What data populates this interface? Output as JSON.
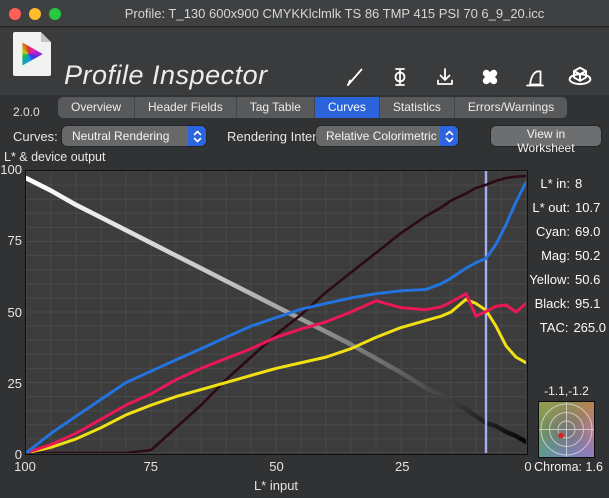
{
  "window": {
    "title": "Profile: T_130 600x900 CMYKKlclmlk TS 86 TMP 415 PSI 70 6_9_20.icc"
  },
  "header": {
    "app_title": "Profile Inspector",
    "version": "2.0.0",
    "toolbar_icons": [
      "pencil",
      "text-cursor",
      "download",
      "bandaid",
      "tone-curve",
      "gamut-cube"
    ]
  },
  "tabs": {
    "items": [
      "Overview",
      "Header Fields",
      "Tag Table",
      "Curves",
      "Statistics",
      "Errors/Warnings"
    ],
    "active": "Curves"
  },
  "controls": {
    "curves_label": "Curves:",
    "curves_value": "Neutral Rendering",
    "intent_label": "Rendering Intent:",
    "intent_value": "Relative Colorimetric",
    "worksheet_button": "View in Worksheet"
  },
  "chart_data": {
    "type": "line",
    "title": "L* & device output",
    "xlabel": "L* input",
    "x_axis": {
      "range": [
        0,
        100
      ],
      "reversed": true,
      "ticks": [
        100,
        75,
        50,
        25,
        0
      ]
    },
    "y_axis": {
      "range": [
        0,
        100
      ],
      "ticks": [
        100,
        75,
        50,
        25,
        0
      ]
    },
    "grid": {
      "on": true,
      "spacing": 5
    },
    "x": [
      100,
      95,
      90,
      85,
      80,
      75,
      70,
      65,
      60,
      55,
      50,
      45,
      40,
      35,
      30,
      25,
      20,
      17,
      15,
      12,
      10,
      8,
      6,
      4,
      2,
      0
    ],
    "series": [
      {
        "name": "L* out",
        "color": "gradient-white-to-black",
        "values": [
          97.5,
          93,
          88,
          83.5,
          79,
          74.5,
          70,
          65.5,
          61,
          56.5,
          52,
          47.5,
          43,
          38.5,
          33.5,
          28.5,
          23,
          20.5,
          18.5,
          15.5,
          13,
          10.7,
          9.5,
          7.5,
          6,
          4
        ]
      },
      {
        "name": "Black",
        "color": "#2d0a13",
        "values": [
          0,
          0,
          0,
          0,
          0,
          1,
          9,
          17,
          26,
          34,
          42,
          49,
          57,
          64,
          71,
          78,
          84,
          87,
          89.5,
          92,
          94,
          95.1,
          96.5,
          97.5,
          98,
          98.2
        ]
      },
      {
        "name": "Yellow",
        "color": "#f2e112",
        "values": [
          0,
          2,
          5,
          9,
          13.5,
          17,
          20,
          22.5,
          25,
          27.5,
          30,
          32,
          34,
          37,
          41,
          44.5,
          47,
          48.5,
          50,
          54.5,
          53,
          50.6,
          45,
          38,
          34,
          32
        ]
      },
      {
        "name": "Magenta",
        "color": "#ea1857",
        "values": [
          0,
          3,
          7,
          12,
          17,
          21,
          26,
          30,
          33.5,
          37,
          41,
          44,
          46.5,
          50,
          54,
          51.5,
          50.8,
          51.8,
          53.5,
          56.5,
          48.5,
          50.2,
          52,
          52.5,
          50,
          53
        ]
      },
      {
        "name": "Cyan",
        "color": "#2373e0",
        "values": [
          0,
          7,
          13,
          19,
          25,
          29,
          33,
          37,
          41,
          45,
          48,
          51,
          53,
          55,
          56.5,
          57.5,
          58,
          60,
          62,
          65.5,
          67.5,
          69,
          74,
          81,
          89,
          96
        ]
      }
    ],
    "cursor": {
      "x": 8,
      "color": "#a9adf5"
    }
  },
  "readouts": [
    {
      "label": "L* in:",
      "value": "8"
    },
    {
      "label": "L* out:",
      "value": "10.7"
    },
    {
      "label": "Cyan:",
      "value": "69.0"
    },
    {
      "label": "Mag:",
      "value": "50.2"
    },
    {
      "label": "Yellow:",
      "value": "50.6"
    },
    {
      "label": "Black:",
      "value": "95.1"
    },
    {
      "label": "TAC:",
      "value": "265.0"
    }
  ],
  "gauge": {
    "coords": "-1.1,-1.2",
    "chroma_label": "Chroma:",
    "chroma_value": "1.6",
    "dot_ab": [
      -1.1,
      -1.2
    ]
  }
}
